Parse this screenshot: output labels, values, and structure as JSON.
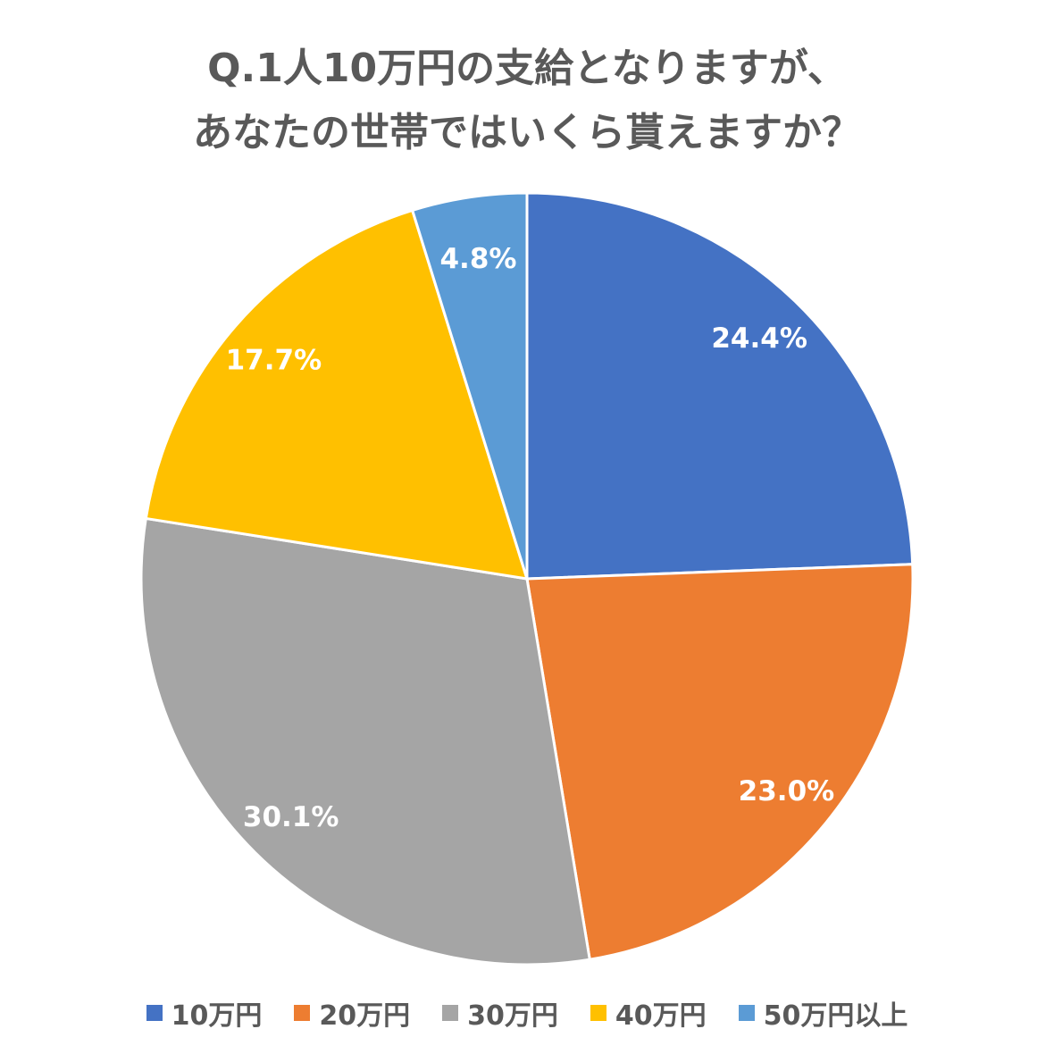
{
  "chart_data": {
    "type": "pie",
    "title": [
      "Q.1人10万円の支給となりますが、",
      "あなたの世帯ではいくら貰えますか？"
    ],
    "categories": [
      "10万円",
      "20万円",
      "30万円",
      "40万円",
      "50万円以上"
    ],
    "values": [
      24.4,
      23.0,
      30.1,
      17.7,
      4.8
    ],
    "labels": [
      "24.4%",
      "23.0%",
      "30.1%",
      "17.7%",
      "4.8%"
    ],
    "colors": [
      "#4472C4",
      "#ED7D31",
      "#A5A5A5",
      "#FFC000",
      "#5B9BD5"
    ],
    "legend": "bottom",
    "start": "top-clockwise"
  }
}
